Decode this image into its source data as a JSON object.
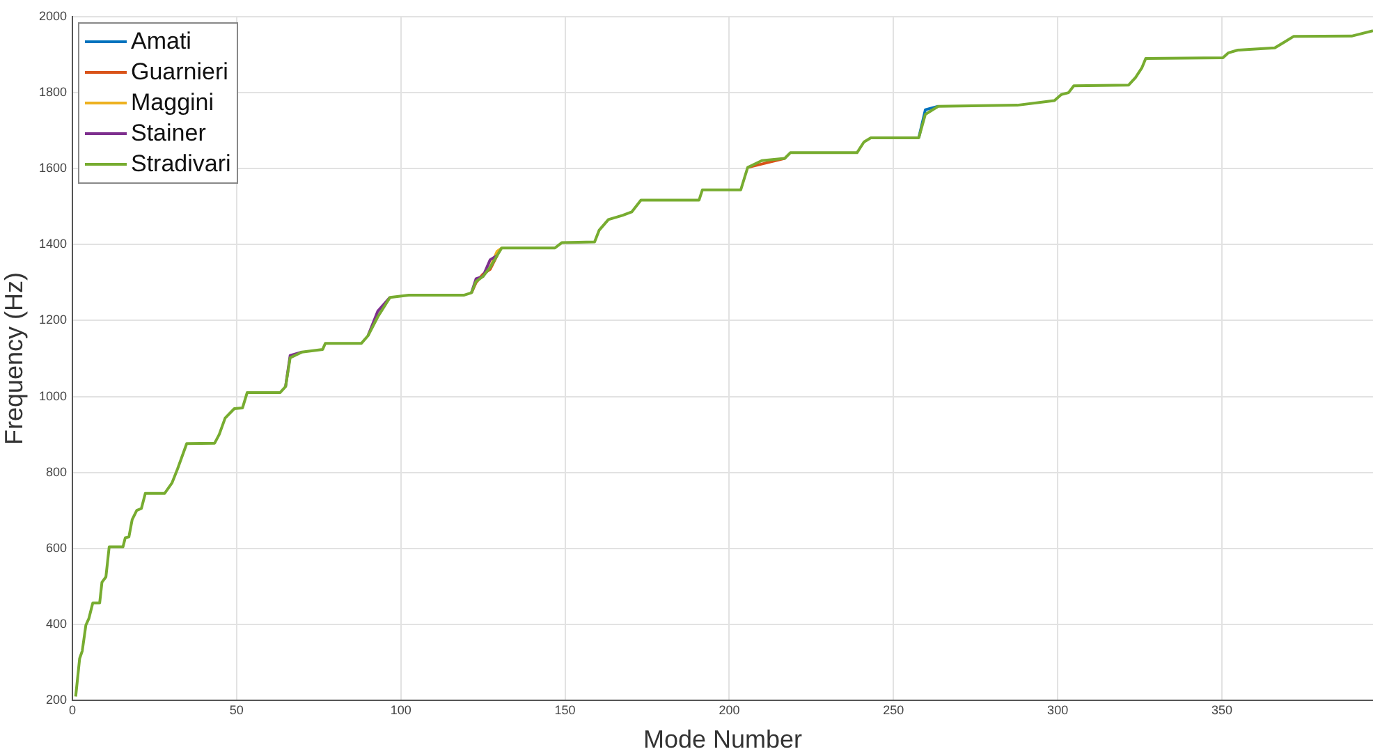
{
  "chart_data": {
    "type": "line",
    "xlabel": "Mode Number",
    "ylabel": "Frequency (Hz)",
    "x": [
      1,
      2.2,
      3,
      4.1,
      5,
      6.2,
      8.3,
      9,
      10.2,
      11.2,
      15.4,
      16.1,
      17.2,
      18.2,
      19.6,
      21,
      22.2,
      28.1,
      30.3,
      32,
      34.8,
      43.3,
      44.7,
      46.5,
      49.3,
      51.8,
      53.2,
      63.2,
      64.9,
      66.3,
      69.9,
      76.2,
      77,
      88,
      90,
      93,
      96.7,
      102.4,
      119.3,
      121.5,
      122.9,
      125,
      127.2,
      129.3,
      130.7,
      146.9,
      149,
      159,
      160.4,
      163.2,
      167.5,
      170.3,
      173.1,
      190.8,
      191.8,
      203.5,
      205.6,
      209.9,
      216.9,
      218.6,
      238.9,
      241,
      243.1,
      257.7,
      259.7,
      263.6,
      287.7,
      299,
      301.1,
      303.3,
      304.9,
      321.6,
      323.7,
      325.6,
      326.8,
      350.3,
      352,
      354.8,
      366.1,
      369,
      371.8,
      389.5,
      396
    ],
    "series": [
      {
        "name": "Amati",
        "color": "#0072bd",
        "values": [
          null,
          null,
          null,
          null,
          null,
          null,
          null,
          null,
          null,
          null,
          null,
          null,
          null,
          null,
          null,
          null,
          null,
          null,
          null,
          null,
          null,
          null,
          null,
          null,
          null,
          null,
          null,
          null,
          null,
          null,
          null,
          null,
          null,
          null,
          null,
          null,
          null,
          null,
          null,
          null,
          null,
          null,
          null,
          null,
          null,
          null,
          null,
          null,
          null,
          null,
          null,
          null,
          null,
          null,
          null,
          null,
          null,
          null,
          null,
          null,
          null,
          null,
          null,
          1681,
          1755,
          1764,
          null,
          null,
          null,
          null,
          null,
          null,
          null,
          null,
          null,
          null,
          null,
          null,
          null,
          null,
          null,
          null,
          null
        ]
      },
      {
        "name": "Guarnieri",
        "color": "#d95319",
        "values": [
          null,
          null,
          null,
          null,
          null,
          null,
          null,
          null,
          null,
          null,
          null,
          null,
          null,
          null,
          null,
          null,
          null,
          null,
          null,
          null,
          null,
          null,
          null,
          null,
          null,
          null,
          null,
          null,
          null,
          null,
          null,
          null,
          null,
          null,
          null,
          null,
          null,
          null,
          null,
          1273,
          1300,
          1322,
          1335,
          1371,
          null,
          null,
          null,
          null,
          null,
          null,
          null,
          null,
          null,
          null,
          null,
          null,
          1603,
          1612,
          1627,
          null,
          null,
          null,
          null,
          null,
          null,
          null,
          null,
          null,
          null,
          null,
          null,
          null,
          null,
          null,
          null,
          null,
          null,
          null,
          null,
          null,
          null,
          null,
          null
        ]
      },
      {
        "name": "Maggini",
        "color": "#edb120",
        "values": [
          null,
          null,
          null,
          null,
          null,
          null,
          null,
          null,
          null,
          null,
          null,
          null,
          null,
          null,
          null,
          null,
          null,
          null,
          null,
          null,
          null,
          null,
          null,
          null,
          null,
          null,
          null,
          null,
          null,
          null,
          null,
          null,
          null,
          null,
          null,
          null,
          null,
          null,
          null,
          null,
          null,
          null,
          1340,
          1382,
          1391,
          null,
          null,
          null,
          null,
          null,
          null,
          null,
          null,
          null,
          null,
          null,
          null,
          null,
          null,
          null,
          null,
          null,
          null,
          null,
          null,
          null,
          null,
          null,
          null,
          null,
          null,
          null,
          null,
          null,
          null,
          null,
          null,
          null,
          null,
          null,
          null,
          null,
          null
        ]
      },
      {
        "name": "Stainer",
        "color": "#7e2f8e",
        "values": [
          null,
          null,
          null,
          null,
          null,
          null,
          null,
          null,
          null,
          null,
          null,
          null,
          null,
          null,
          null,
          null,
          null,
          null,
          null,
          null,
          null,
          null,
          null,
          null,
          null,
          null,
          null,
          null,
          1026,
          1108,
          1117,
          null,
          null,
          null,
          1160,
          1225,
          1261,
          null,
          null,
          1273,
          1310,
          1316,
          1360,
          1371,
          null,
          null,
          null,
          null,
          null,
          null,
          null,
          null,
          null,
          null,
          null,
          null,
          null,
          null,
          null,
          null,
          null,
          null,
          null,
          null,
          null,
          null,
          null,
          null,
          null,
          null,
          null,
          null,
          null,
          null,
          null,
          null,
          null,
          null,
          null,
          null,
          null,
          null,
          null
        ]
      },
      {
        "name": "Stradivari",
        "color": "#77ac30",
        "values": [
          210,
          310,
          330,
          398,
          415,
          456,
          456,
          511,
          525,
          604,
          604,
          628,
          630,
          676,
          700,
          705,
          745,
          745,
          772,
          809,
          876,
          877,
          900,
          943,
          968,
          970,
          1010,
          1010,
          1026,
          1102,
          1117,
          1124,
          1140,
          1140,
          1160,
          1210,
          1261,
          1267,
          1267,
          1273,
          1303,
          1316,
          1340,
          1371,
          1391,
          1391,
          1405,
          1407,
          1438,
          1466,
          1477,
          1486,
          1517,
          1517,
          1544,
          1544,
          1603,
          1621,
          1627,
          1642,
          1642,
          1670,
          1681,
          1681,
          1743,
          1764,
          1767,
          1779,
          1795,
          1800,
          1818,
          1820,
          1840,
          1865,
          1890,
          1892,
          1905,
          1912,
          1918,
          1933,
          1948,
          1949,
          1963
        ]
      }
    ],
    "xlim": [
      0,
      396
    ],
    "xticks": [
      0,
      50,
      100,
      150,
      200,
      250,
      300,
      350
    ],
    "ylim": [
      200,
      2000
    ],
    "yticks": [
      200,
      400,
      600,
      800,
      1000,
      1200,
      1400,
      1600,
      1800,
      2000
    ],
    "grid": true,
    "legend": "top left",
    "marker": "none",
    "line_style": "solid"
  }
}
